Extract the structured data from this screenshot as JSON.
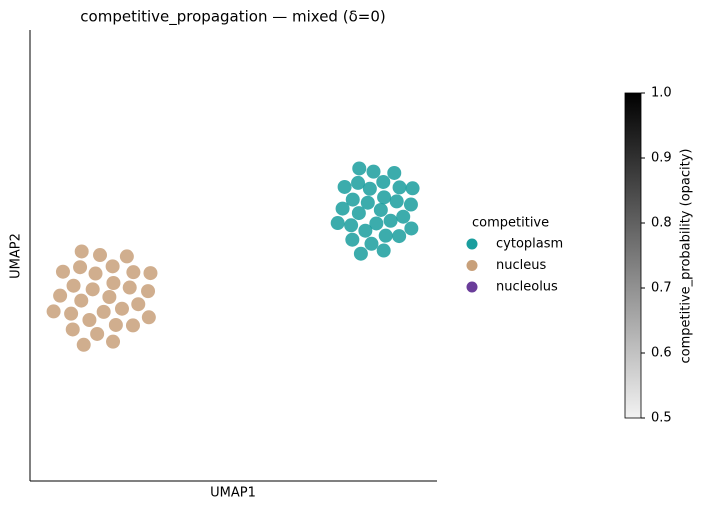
{
  "chart_data": {
    "type": "scatter",
    "title": "competitive_propagation — mixed (δ=0)",
    "x_label": "UMAP1",
    "y_label": "UMAP2",
    "xlim": [
      0,
      10
    ],
    "ylim": [
      0,
      10
    ],
    "legend_title": "competitive",
    "legend_position": "right",
    "series": [
      {
        "name": "cytoplasm",
        "color": "#1a9e9e",
        "x": [
          8.62,
          8.3,
          8.51,
          8.7,
          8.08,
          8.86,
          8.35,
          8.24,
          9.01,
          7.93,
          8.74,
          8.68,
          7.89,
          9.17,
          8.06,
          8.39,
          9.08,
          7.68,
          9.07,
          8.44,
          7.92,
          9.36,
          7.73,
          8.69,
          8.95,
          7.56,
          9.37,
          8.09,
          8.13,
          9.4
        ],
        "y": [
          6.01,
          6.17,
          5.71,
          6.29,
          5.94,
          5.77,
          6.48,
          5.55,
          6.2,
          6.24,
          5.44,
          6.63,
          5.67,
          5.86,
          6.61,
          5.26,
          6.51,
          6.04,
          5.43,
          6.86,
          5.35,
          6.13,
          6.52,
          5.11,
          6.83,
          5.72,
          5.6,
          6.93,
          5.04,
          6.49
        ]
      },
      {
        "name": "nucleus",
        "color": "#c8a07a",
        "x": [
          1.95,
          1.54,
          1.81,
          2.05,
          1.26,
          2.26,
          1.61,
          1.46,
          2.45,
          1.07,
          2.11,
          2.03,
          1.01,
          2.66,
          1.23,
          1.65,
          2.54,
          0.74,
          2.53,
          1.72,
          1.05,
          2.9,
          0.81,
          2.04,
          2.38,
          0.58,
          2.92,
          1.27,
          1.32,
          2.96
        ],
        "y": [
          4.08,
          4.25,
          3.75,
          4.39,
          4.0,
          3.82,
          4.6,
          3.57,
          4.29,
          4.33,
          3.46,
          4.76,
          3.71,
          3.92,
          4.74,
          3.26,
          4.63,
          4.11,
          3.45,
          5.01,
          3.36,
          4.21,
          4.64,
          3.09,
          4.98,
          3.76,
          3.63,
          5.09,
          3.02,
          4.61
        ]
      },
      {
        "name": "nucleolus",
        "color": "#6a3d9a",
        "x": [],
        "y": []
      }
    ],
    "colorbar": {
      "label": "competitive_probability (opacity)",
      "lim": [
        0.5,
        1
      ],
      "ticks": [
        0.5,
        0.6,
        0.7,
        0.8,
        0.9,
        {
          "value": 1,
          "label": "1.0"
        }
      ],
      "colors": [
        "#f2f2f2",
        "#000000"
      ]
    }
  }
}
